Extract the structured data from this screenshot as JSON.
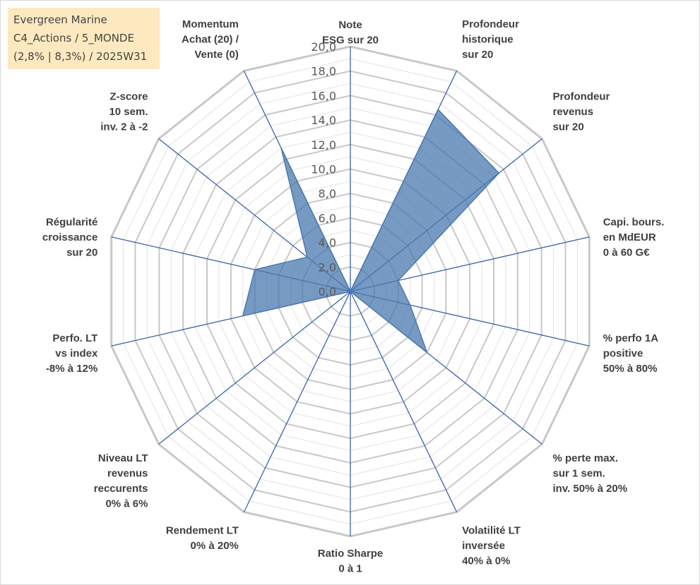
{
  "title_box": {
    "lines": [
      "Evergreen Marine",
      "C4_Actions / 5_MONDE",
      "(2,8% | 8,3%) / 2025W31"
    ]
  },
  "chart_data": {
    "type": "radar",
    "axes": [
      {
        "label": [
          "Note",
          "ESG sur 20"
        ],
        "value": 0.0
      },
      {
        "label": [
          "Profondeur",
          "historique",
          "sur 20"
        ],
        "value": 16.5
      },
      {
        "label": [
          "Profondeur",
          "revenus",
          "sur 20"
        ],
        "value": 15.5
      },
      {
        "label": [
          "Capi. bours.",
          "en MdEUR",
          "0 à 60 G€"
        ],
        "value": 4.0
      },
      {
        "label": [
          "% perfo 1A",
          "positive",
          "50% à 80%"
        ],
        "value": 5.0
      },
      {
        "label": [
          "% perte max.",
          "sur 1 sem.",
          "inv. 50% à 20%"
        ],
        "value": 8.0
      },
      {
        "label": [
          "Volatilité LT",
          "inversée",
          "40% à 0%"
        ],
        "value": 0.0
      },
      {
        "label": [
          "Ratio Sharpe",
          "0 à 1"
        ],
        "value": 0.0
      },
      {
        "label": [
          "Rendement LT",
          "0% à 20%"
        ],
        "value": 0.0
      },
      {
        "label": [
          "Niveau LT",
          "revenus",
          "reccurents",
          "0% à 6%"
        ],
        "value": 0.0
      },
      {
        "label": [
          "Perfo. LT",
          "vs index",
          "-8% à 12%"
        ],
        "value": 9.0
      },
      {
        "label": [
          "Régularité",
          "croissance",
          "sur 20"
        ],
        "value": 8.0
      },
      {
        "label": [
          "Z-score",
          "10 sem.",
          "inv. 2 à -2"
        ],
        "value": 4.5
      },
      {
        "label": [
          "Momentum",
          "Achat (20) /",
          "Vente (0)"
        ],
        "value": 13.0
      }
    ],
    "ticks": [
      "0,0",
      "2,0",
      "4,0",
      "6,0",
      "8,0",
      "10,0",
      "12,0",
      "14,0",
      "16,0",
      "18,0",
      "20,0"
    ],
    "rmin": 0,
    "rmax": 20,
    "gridlines": true,
    "legend": "none",
    "colors": {
      "fill": "#4a78ad",
      "axis": "#3a63ab",
      "grid": "#c8c8c8",
      "minor_grid": "#e3e3e3"
    }
  }
}
